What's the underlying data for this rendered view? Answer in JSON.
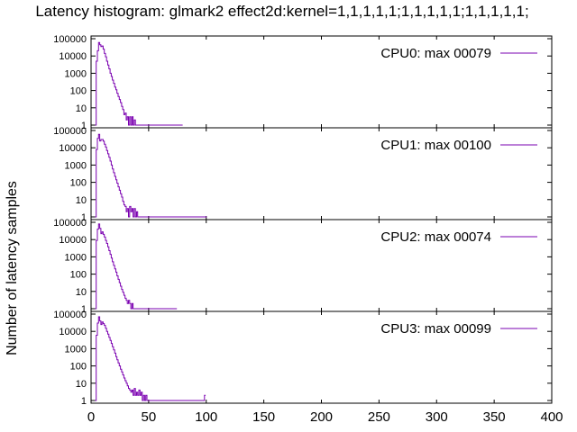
{
  "chart_data": {
    "type": "line",
    "title": "Latency histogram:  glmark2 effect2d:kernel=1,1,1,1,1;1,1,1,1,1;1,1,1,1,1;",
    "xlabel": "",
    "ylabel": "Number of latency samples",
    "xlim": [
      0,
      400
    ],
    "ylim": [
      1,
      100000
    ],
    "yscale": "log",
    "xticks": [
      "0",
      "50",
      "100",
      "150",
      "200",
      "250",
      "300",
      "350",
      "400"
    ],
    "yticks": [
      "1",
      "10",
      "100",
      "1000",
      "10000",
      "100000"
    ],
    "grid": false,
    "legend_position": "top-right",
    "series_color": "#7a00b0",
    "panels": [
      {
        "legend": "CPU0: max 00079",
        "points": [
          [
            4,
            1
          ],
          [
            5,
            5000
          ],
          [
            6,
            20000
          ],
          [
            7,
            60000
          ],
          [
            8,
            45000
          ],
          [
            9,
            35000
          ],
          [
            10,
            38000
          ],
          [
            11,
            25000
          ],
          [
            12,
            14000
          ],
          [
            13,
            9000
          ],
          [
            14,
            5000
          ],
          [
            15,
            3000
          ],
          [
            16,
            1800
          ],
          [
            17,
            1000
          ],
          [
            18,
            650
          ],
          [
            19,
            400
          ],
          [
            20,
            260
          ],
          [
            21,
            160
          ],
          [
            22,
            110
          ],
          [
            23,
            70
          ],
          [
            24,
            45
          ],
          [
            25,
            30
          ],
          [
            26,
            20
          ],
          [
            27,
            12
          ],
          [
            28,
            8
          ],
          [
            29,
            4
          ],
          [
            30,
            5
          ],
          [
            31,
            2
          ],
          [
            32,
            3
          ],
          [
            33,
            1
          ],
          [
            34,
            3
          ],
          [
            35,
            1
          ],
          [
            36,
            3
          ],
          [
            37,
            1
          ],
          [
            38,
            2
          ],
          [
            40,
            1
          ],
          [
            42,
            1
          ],
          [
            44,
            1
          ],
          [
            65,
            1
          ],
          [
            78,
            1
          ],
          [
            79,
            1
          ]
        ]
      },
      {
        "legend": "CPU1: max 00100",
        "points": [
          [
            4,
            1
          ],
          [
            5,
            8000
          ],
          [
            6,
            35000
          ],
          [
            7,
            60000
          ],
          [
            8,
            25000
          ],
          [
            9,
            30000
          ],
          [
            10,
            30000
          ],
          [
            11,
            24000
          ],
          [
            12,
            16000
          ],
          [
            13,
            11000
          ],
          [
            14,
            7000
          ],
          [
            15,
            4500
          ],
          [
            16,
            2800
          ],
          [
            17,
            1700
          ],
          [
            18,
            1000
          ],
          [
            19,
            600
          ],
          [
            20,
            360
          ],
          [
            21,
            220
          ],
          [
            22,
            140
          ],
          [
            23,
            90
          ],
          [
            24,
            55
          ],
          [
            25,
            35
          ],
          [
            26,
            22
          ],
          [
            27,
            14
          ],
          [
            28,
            8
          ],
          [
            29,
            5
          ],
          [
            30,
            4
          ],
          [
            31,
            2
          ],
          [
            32,
            3
          ],
          [
            33,
            1
          ],
          [
            34,
            4
          ],
          [
            35,
            2
          ],
          [
            36,
            3
          ],
          [
            37,
            1
          ],
          [
            38,
            3
          ],
          [
            39,
            1
          ],
          [
            40,
            2
          ],
          [
            42,
            1
          ],
          [
            45,
            1
          ],
          [
            50,
            1
          ],
          [
            53,
            1
          ],
          [
            99,
            1
          ],
          [
            100,
            1
          ]
        ]
      },
      {
        "legend": "CPU2: max 00074",
        "points": [
          [
            4,
            1
          ],
          [
            5,
            9000
          ],
          [
            6,
            40000
          ],
          [
            7,
            80000
          ],
          [
            8,
            45000
          ],
          [
            9,
            22000
          ],
          [
            10,
            28000
          ],
          [
            11,
            20000
          ],
          [
            12,
            14000
          ],
          [
            13,
            9000
          ],
          [
            14,
            6000
          ],
          [
            15,
            3800
          ],
          [
            16,
            2300
          ],
          [
            17,
            1400
          ],
          [
            18,
            850
          ],
          [
            19,
            520
          ],
          [
            20,
            320
          ],
          [
            21,
            200
          ],
          [
            22,
            130
          ],
          [
            23,
            80
          ],
          [
            24,
            50
          ],
          [
            25,
            32
          ],
          [
            26,
            20
          ],
          [
            27,
            13
          ],
          [
            28,
            9
          ],
          [
            29,
            6
          ],
          [
            30,
            4
          ],
          [
            31,
            3
          ],
          [
            32,
            2
          ],
          [
            33,
            3
          ],
          [
            34,
            2
          ],
          [
            35,
            1
          ],
          [
            36,
            2
          ],
          [
            37,
            1
          ],
          [
            38,
            1
          ],
          [
            39,
            1
          ],
          [
            58,
            1
          ],
          [
            74,
            1
          ]
        ]
      },
      {
        "legend": "CPU3: max 00099",
        "points": [
          [
            4,
            1
          ],
          [
            5,
            6000
          ],
          [
            6,
            30000
          ],
          [
            7,
            70000
          ],
          [
            8,
            40000
          ],
          [
            9,
            25000
          ],
          [
            10,
            35000
          ],
          [
            11,
            28000
          ],
          [
            12,
            22000
          ],
          [
            13,
            15000
          ],
          [
            14,
            10000
          ],
          [
            15,
            7000
          ],
          [
            16,
            4500
          ],
          [
            17,
            3000
          ],
          [
            18,
            2000
          ],
          [
            19,
            1300
          ],
          [
            20,
            850
          ],
          [
            21,
            550
          ],
          [
            22,
            350
          ],
          [
            23,
            230
          ],
          [
            24,
            150
          ],
          [
            25,
            100
          ],
          [
            26,
            65
          ],
          [
            27,
            45
          ],
          [
            28,
            30
          ],
          [
            29,
            20
          ],
          [
            30,
            14
          ],
          [
            31,
            10
          ],
          [
            32,
            7
          ],
          [
            33,
            5
          ],
          [
            34,
            4
          ],
          [
            35,
            3
          ],
          [
            36,
            4
          ],
          [
            37,
            2
          ],
          [
            38,
            5
          ],
          [
            39,
            2
          ],
          [
            40,
            3
          ],
          [
            41,
            2
          ],
          [
            42,
            4
          ],
          [
            43,
            2
          ],
          [
            44,
            3
          ],
          [
            45,
            1
          ],
          [
            46,
            2
          ],
          [
            47,
            1
          ],
          [
            48,
            2
          ],
          [
            50,
            1
          ],
          [
            52,
            1
          ],
          [
            55,
            1
          ],
          [
            60,
            1
          ],
          [
            98,
            1
          ],
          [
            99,
            2
          ]
        ]
      }
    ]
  }
}
